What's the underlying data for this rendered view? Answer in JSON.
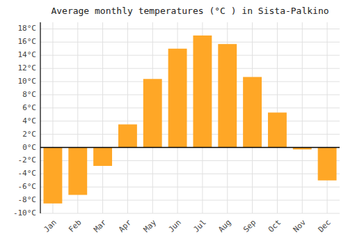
{
  "chart_data": {
    "type": "bar",
    "title": "Average monthly temperatures (°C ) in Sista-Palkino",
    "categories": [
      "Jan",
      "Feb",
      "Mar",
      "Apr",
      "May",
      "Jun",
      "Jul",
      "Aug",
      "Sep",
      "Oct",
      "Nov",
      "Dec"
    ],
    "values": [
      -8.5,
      -7.2,
      -2.8,
      3.5,
      10.4,
      15.0,
      17.0,
      15.7,
      10.7,
      5.3,
      -0.3,
      -5.0
    ],
    "color": "#FFA726",
    "ylim": [
      -10,
      19
    ],
    "yticks": [
      {
        "value": -10,
        "label": "-10°C"
      },
      {
        "value": -8,
        "label": "-8°C"
      },
      {
        "value": -6,
        "label": "-6°C"
      },
      {
        "value": -4,
        "label": "-4°C"
      },
      {
        "value": -2,
        "label": "-2°C"
      },
      {
        "value": 0,
        "label": "0°C"
      },
      {
        "value": 2,
        "label": "2°C"
      },
      {
        "value": 4,
        "label": "4°C"
      },
      {
        "value": 6,
        "label": "6°C"
      },
      {
        "value": 8,
        "label": "8°C"
      },
      {
        "value": 10,
        "label": "10°C"
      },
      {
        "value": 12,
        "label": "12°C"
      },
      {
        "value": 14,
        "label": "14°C"
      },
      {
        "value": 16,
        "label": "16°C"
      },
      {
        "value": 18,
        "label": "18°C"
      }
    ],
    "grid": true
  }
}
